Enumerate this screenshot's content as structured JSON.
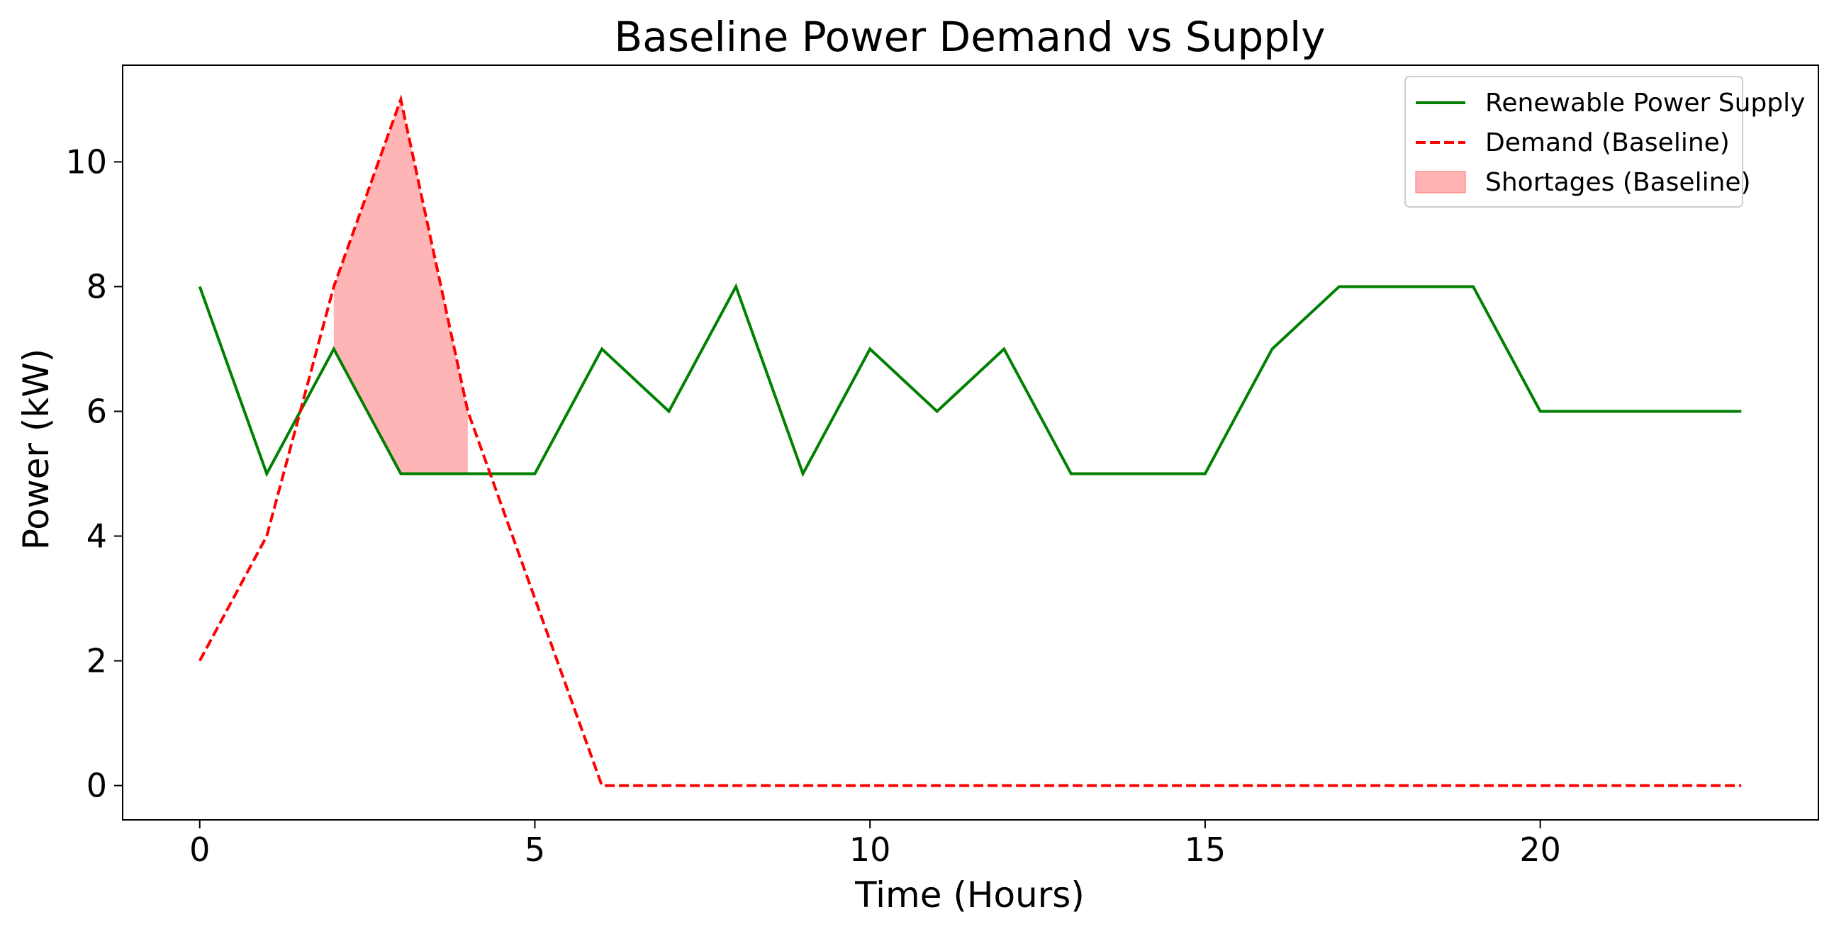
{
  "chart_data": {
    "type": "line",
    "title": "Baseline Power Demand vs Supply",
    "xlabel": "Time (Hours)",
    "ylabel": "Power (kW)",
    "xlim": [
      -1.15,
      24.15
    ],
    "ylim": [
      -0.55,
      11.55
    ],
    "xticks": [
      0,
      5,
      10,
      15,
      20
    ],
    "yticks": [
      0,
      2,
      4,
      6,
      8,
      10
    ],
    "grid": false,
    "legend_position": "top-right",
    "x": [
      0,
      1,
      2,
      3,
      4,
      5,
      6,
      7,
      8,
      9,
      10,
      11,
      12,
      13,
      14,
      15,
      16,
      17,
      18,
      19,
      20,
      21,
      22,
      23
    ],
    "series": [
      {
        "name": "Renewable Power Supply",
        "kind": "line",
        "style": "solid",
        "color": "#008000",
        "values": [
          8,
          5,
          7,
          5,
          5,
          5,
          7,
          6,
          8,
          5,
          7,
          6,
          7,
          5,
          5,
          5,
          7,
          8,
          8,
          8,
          6,
          6,
          6,
          6
        ]
      },
      {
        "name": "Demand (Baseline)",
        "kind": "line",
        "style": "dashed",
        "color": "#ff0000",
        "values": [
          2,
          4,
          8,
          11,
          6,
          3,
          0,
          0,
          0,
          0,
          0,
          0,
          0,
          0,
          0,
          0,
          0,
          0,
          0,
          0,
          0,
          0,
          0,
          0
        ]
      }
    ],
    "fill": {
      "name": "Shortages (Baseline)",
      "color": "#ff9999",
      "x": [
        2,
        3,
        4
      ],
      "lower": [
        7,
        5,
        5
      ],
      "upper": [
        8,
        11,
        6
      ]
    }
  }
}
